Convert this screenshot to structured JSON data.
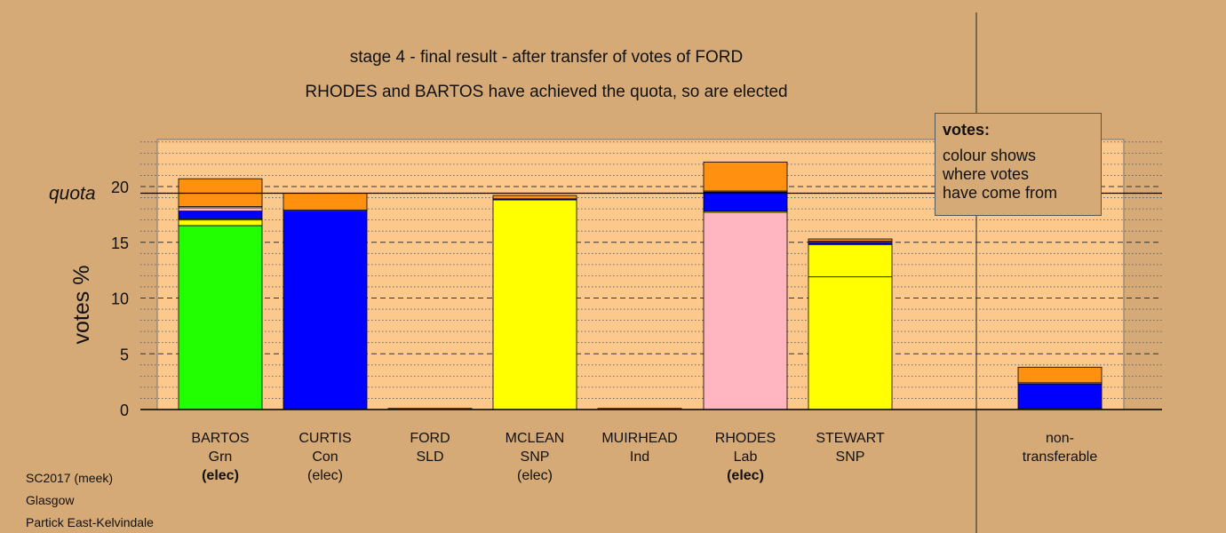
{
  "titles": {
    "line1": "stage 4 - final result - after transfer of votes of FORD",
    "line2": "RHODES and BARTOS have achieved the quota, so are elected"
  },
  "legend": {
    "title": "votes:",
    "lines": [
      "colour shows",
      "where votes",
      "have come from"
    ]
  },
  "footer": {
    "line1": "SC2017 (meek)",
    "line2": "Glasgow",
    "line3": "Partick East-Kelvindale"
  },
  "chart_data": {
    "type": "bar",
    "stacked": true,
    "ylabel": "votes %",
    "quota_label": "quota",
    "quota": 19.4,
    "ylim": [
      0,
      24
    ],
    "yticks": [
      0,
      5,
      10,
      15,
      20
    ],
    "minor_grid_step": 1,
    "candidates": [
      {
        "name": "BARTOS",
        "party": "Grn",
        "status": "(elec)",
        "status_bold": true,
        "segments": [
          {
            "color": "#22ff00",
            "value": 16.5
          },
          {
            "color": "#ffff00",
            "value": 0.5
          },
          {
            "color": "#ffffff",
            "value": 0.1
          },
          {
            "color": "#0000ff",
            "value": 0.7
          },
          {
            "color": "#ffb6c1",
            "value": 0.3
          },
          {
            "color": "#ffffff",
            "value": 0.1
          },
          {
            "color": "#ff9010",
            "value": 2.5
          }
        ]
      },
      {
        "name": "CURTIS",
        "party": "Con",
        "status": "(elec)",
        "status_bold": false,
        "segments": [
          {
            "color": "#0000ff",
            "value": 17.8
          },
          {
            "color": "#ffff00",
            "value": 0.1
          },
          {
            "color": "#ff9010",
            "value": 1.5
          }
        ]
      },
      {
        "name": "FORD",
        "party": "SLD",
        "status": "",
        "status_bold": false,
        "segments": [
          {
            "color": "#ff9010",
            "value": 0.1
          }
        ]
      },
      {
        "name": "MCLEAN",
        "party": "SNP",
        "status": "(elec)",
        "status_bold": false,
        "segments": [
          {
            "color": "#ffff00",
            "value": 18.8
          },
          {
            "color": "#0000ff",
            "value": 0.1
          },
          {
            "color": "#ff9010",
            "value": 0.3
          }
        ]
      },
      {
        "name": "MUIRHEAD",
        "party": "Ind",
        "status": "",
        "status_bold": false,
        "segments": [
          {
            "color": "#ff9010",
            "value": 0.1
          }
        ]
      },
      {
        "name": "RHODES",
        "party": "Lab",
        "status": "(elec)",
        "status_bold": true,
        "segments": [
          {
            "color": "#ffb6c1",
            "value": 17.7
          },
          {
            "color": "#ffff00",
            "value": 0.1
          },
          {
            "color": "#0000ff",
            "value": 1.7
          },
          {
            "color": "#22ff00",
            "value": 0.1
          },
          {
            "color": "#ff9010",
            "value": 2.6
          }
        ]
      },
      {
        "name": "STEWART",
        "party": "SNP",
        "status": "",
        "status_bold": false,
        "segments": [
          {
            "color": "#ffff00",
            "value": 11.9
          },
          {
            "color": "#ffff00",
            "value": 2.9
          },
          {
            "color": "#0000ff",
            "value": 0.2
          },
          {
            "color": "#ffb6c1",
            "value": 0.1
          },
          {
            "color": "#ff9010",
            "value": 0.2
          }
        ]
      },
      {
        "name": "non-",
        "party": "transferable",
        "status": "",
        "status_bold": false,
        "segments": [
          {
            "color": "#ffff00",
            "value": 0.1
          },
          {
            "color": "#0000ff",
            "value": 2.2
          },
          {
            "color": "#ffffff",
            "value": 0.1
          },
          {
            "color": "#ff9010",
            "value": 1.4
          }
        ]
      }
    ],
    "colors": {
      "background": "#d5aa76",
      "plot_area": "#fcc88c",
      "green": "#22ff00",
      "blue": "#0000ff",
      "yellow": "#ffff00",
      "pink": "#ffb6c1",
      "orange": "#ff9010"
    }
  }
}
